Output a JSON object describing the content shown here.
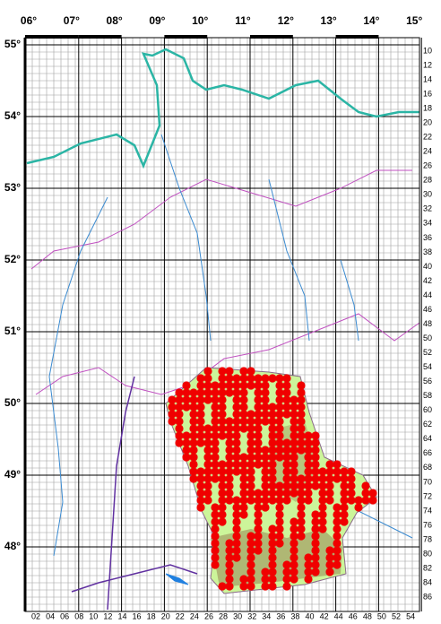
{
  "map": {
    "longitude_labels": [
      "06°",
      "07°",
      "08°",
      "09°",
      "10°",
      "11°",
      "12°",
      "13°",
      "14°",
      "15°"
    ],
    "latitude_labels": [
      "55°",
      "54°",
      "53°",
      "52°",
      "51°",
      "50°",
      "49°",
      "48°"
    ],
    "row_labels": [
      "10",
      "12",
      "14",
      "16",
      "18",
      "20",
      "22",
      "24",
      "26",
      "28",
      "30",
      "32",
      "34",
      "36",
      "38",
      "40",
      "42",
      "44",
      "46",
      "48",
      "50",
      "52",
      "54",
      "56",
      "58",
      "60",
      "62",
      "64",
      "66",
      "68",
      "70",
      "72",
      "74",
      "76",
      "78",
      "80",
      "82",
      "84",
      "86"
    ],
    "column_labels": [
      "02",
      "04",
      "06",
      "08",
      "10",
      "12",
      "14",
      "16",
      "18",
      "20",
      "22",
      "24",
      "26",
      "28",
      "30",
      "32",
      "34",
      "36",
      "38",
      "40",
      "42",
      "44",
      "46",
      "48",
      "50",
      "52",
      "54"
    ]
  }
}
